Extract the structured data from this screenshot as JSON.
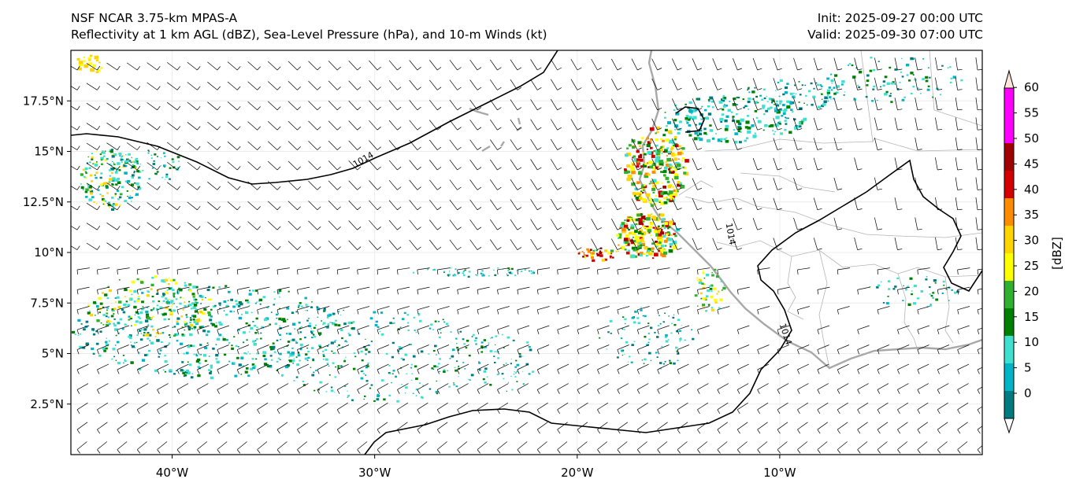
{
  "header": {
    "model": "NSF NCAR 3.75-km MPAS-A",
    "fields": "Reflectivity at 1 km AGL (dBZ), Sea-Level Pressure (hPa), and 10-m Winds (kt)",
    "init": "Init: 2025-09-27 00:00 UTC",
    "valid": "Valid: 2025-09-30 07:00 UTC"
  },
  "map": {
    "lon_range": [
      -45,
      0
    ],
    "lat_range": [
      0,
      20
    ],
    "lon_ticks": [
      {
        "value": -40,
        "label": "40°W"
      },
      {
        "value": -30,
        "label": "30°W"
      },
      {
        "value": -20,
        "label": "20°W"
      },
      {
        "value": -10,
        "label": "10°W"
      }
    ],
    "lat_ticks": [
      {
        "value": 2.5,
        "label": "2.5°N"
      },
      {
        "value": 5,
        "label": "5°N"
      },
      {
        "value": 7.5,
        "label": "7.5°N"
      },
      {
        "value": 10,
        "label": "10°N"
      },
      {
        "value": 12.5,
        "label": "12.5°N"
      },
      {
        "value": 15,
        "label": "15°N"
      },
      {
        "value": 17.5,
        "label": "17.5°N"
      }
    ],
    "isobar_labels": [
      "1014",
      "1014",
      "1014"
    ]
  },
  "colorbar": {
    "unit_label": "[dBZ]",
    "levels": [
      0,
      5,
      10,
      15,
      20,
      25,
      30,
      35,
      40,
      45,
      50,
      55,
      60
    ],
    "labels": [
      "0",
      "5",
      "10",
      "15",
      "20",
      "25",
      "30",
      "35",
      "40",
      "45",
      "50",
      "55",
      "60"
    ],
    "colors": [
      "#ffffff",
      "#007b80",
      "#00b4c8",
      "#40e0d0",
      "#008000",
      "#2fb02f",
      "#ffff00",
      "#ffd400",
      "#ff8c00",
      "#d40000",
      "#a00000",
      "#ff00ff",
      "#ffe4dc"
    ]
  }
}
